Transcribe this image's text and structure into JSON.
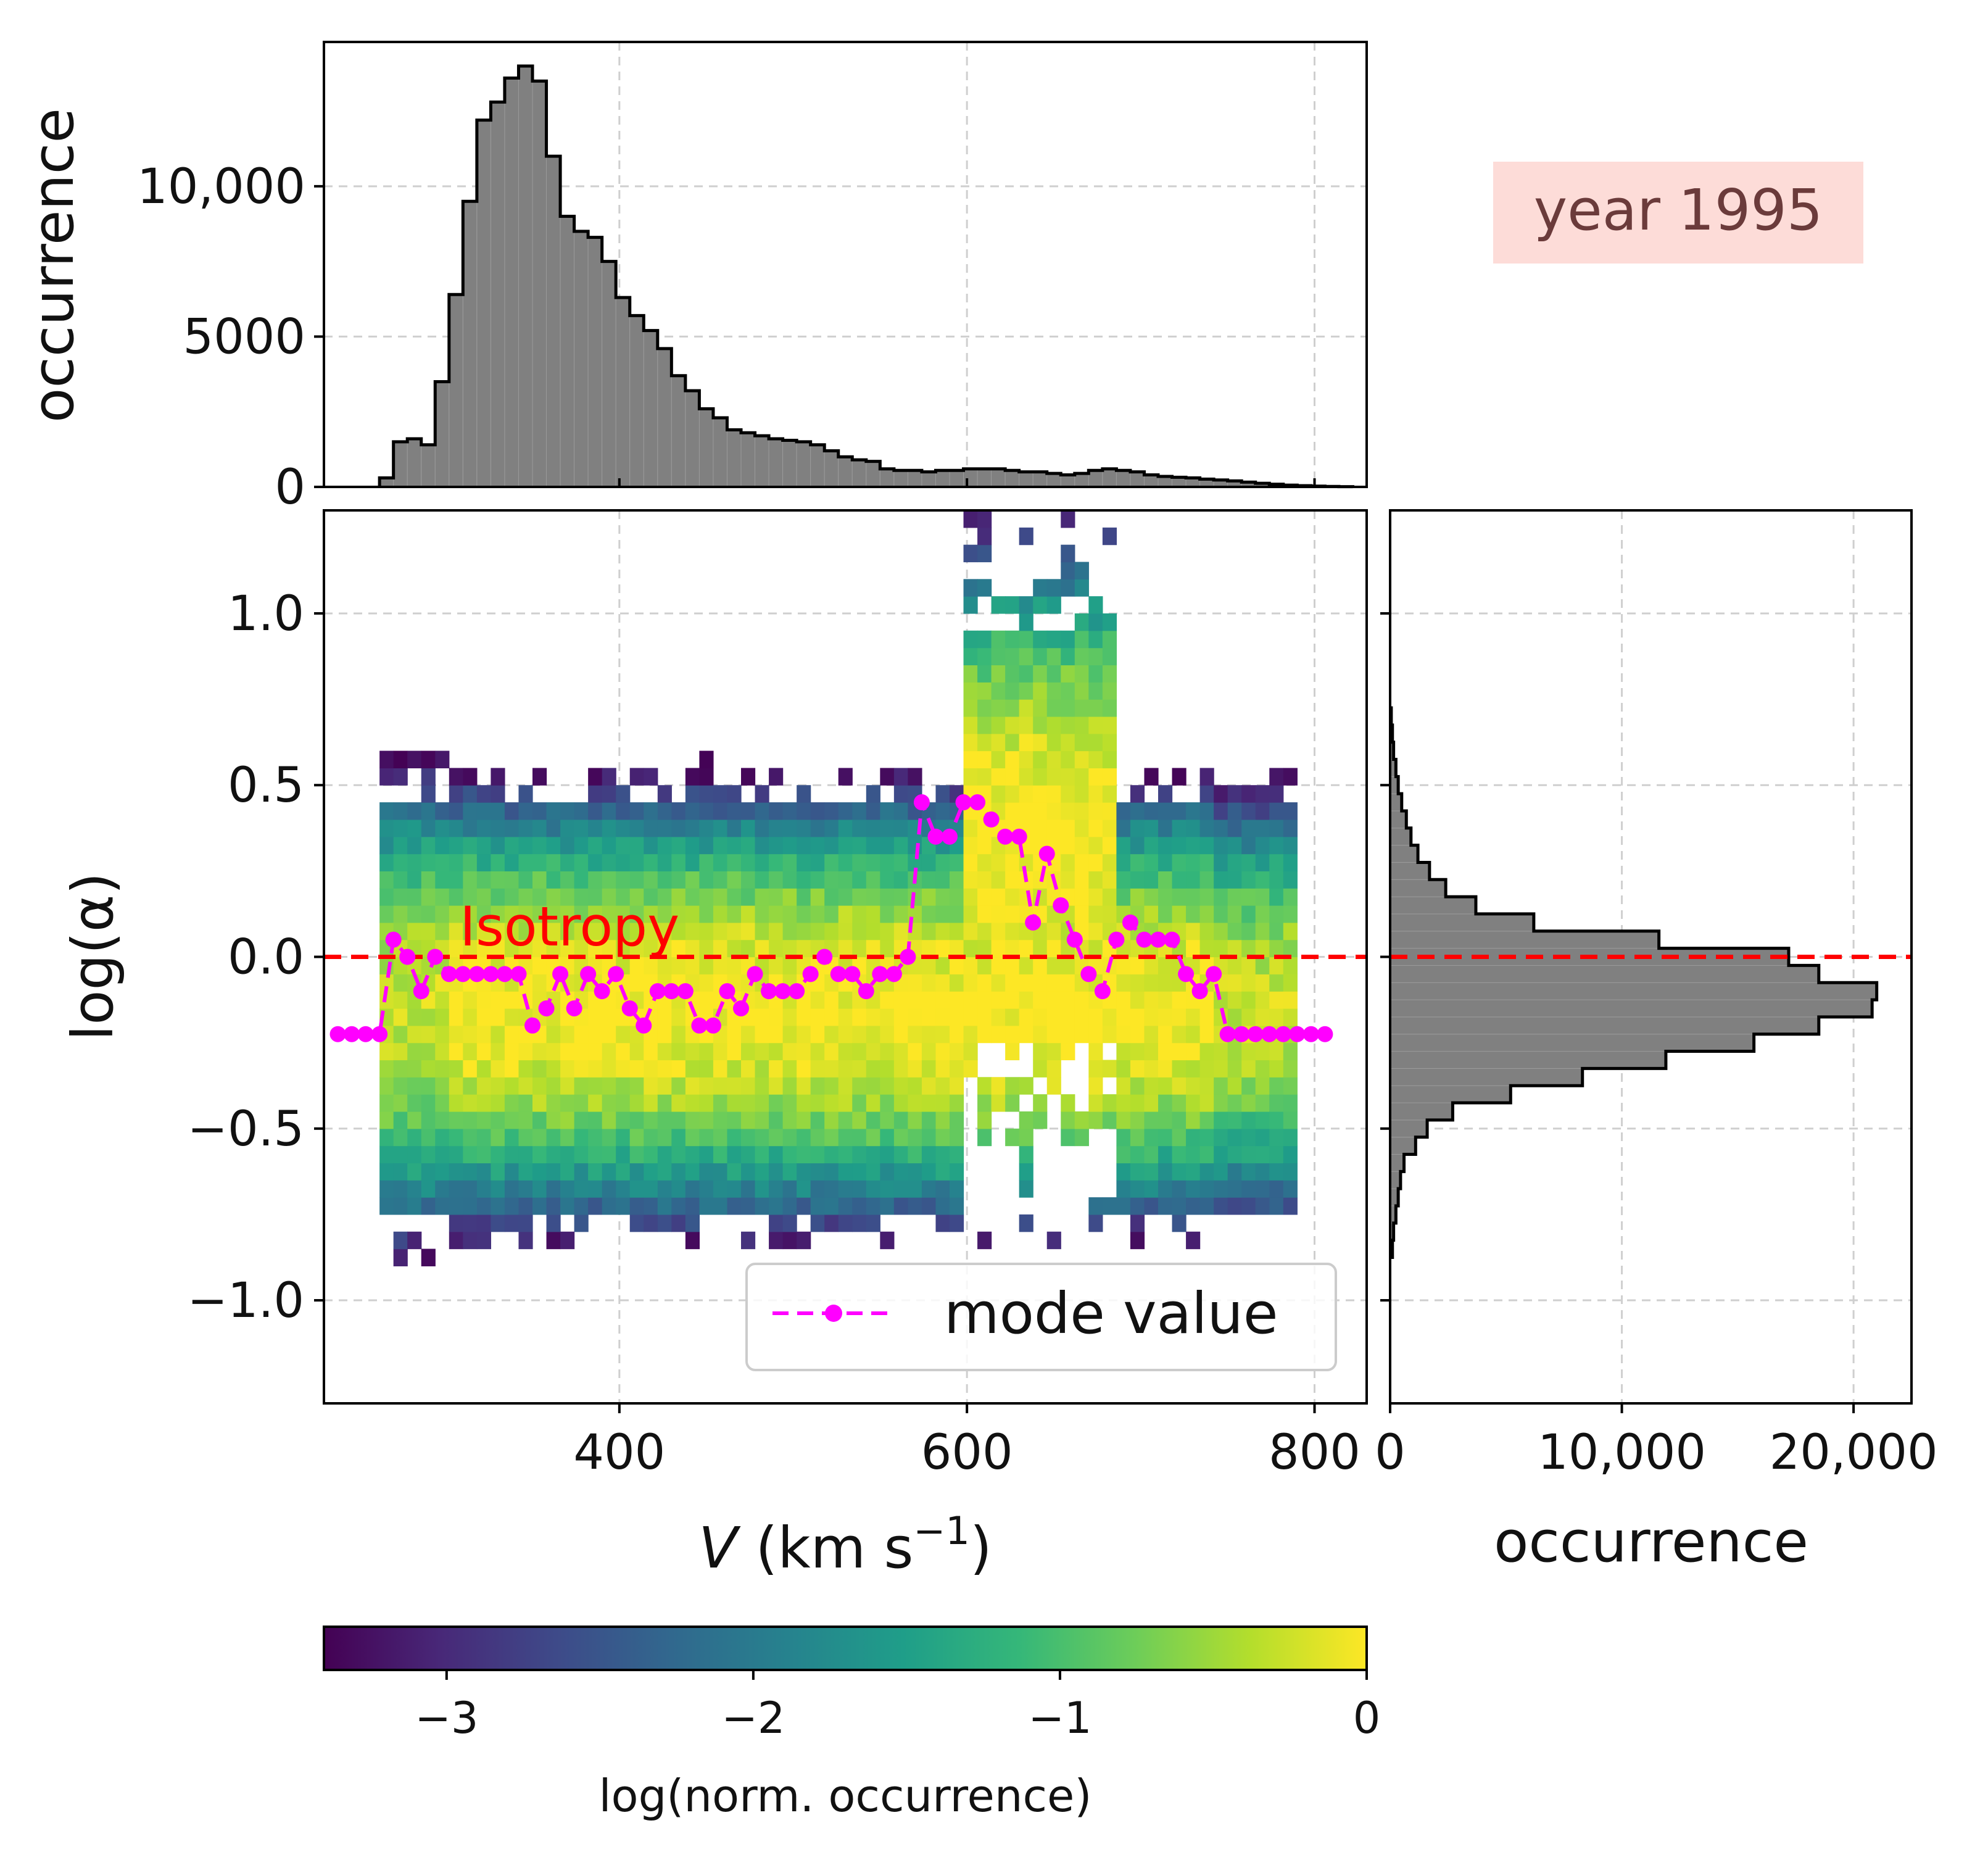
{
  "chart_data": [
    {
      "id": "top-histogram",
      "type": "bar",
      "title": "",
      "xlabel": "",
      "ylabel": "occurrence",
      "xlim": [
        230,
        830
      ],
      "ylim": [
        0,
        14800
      ],
      "bin_width": 8,
      "bin_edges_start": 262,
      "values": [
        300,
        1500,
        1600,
        1400,
        3500,
        6400,
        9500,
        12200,
        12800,
        13600,
        14000,
        13500,
        11000,
        9000,
        8500,
        8300,
        7500,
        6300,
        5700,
        5200,
        4600,
        3700,
        3200,
        2600,
        2300,
        1900,
        1800,
        1700,
        1600,
        1550,
        1500,
        1400,
        1200,
        1000,
        900,
        850,
        600,
        550,
        550,
        500,
        550,
        550,
        600,
        600,
        600,
        550,
        500,
        500,
        450,
        400,
        450,
        550,
        600,
        550,
        500,
        400,
        350,
        320,
        300,
        260,
        230,
        200,
        160,
        120,
        90,
        60,
        40,
        25,
        15,
        8
      ],
      "y_ticks": [
        {
          "value": 0,
          "label": "0"
        },
        {
          "value": 5000,
          "label": "5000"
        },
        {
          "value": 10000,
          "label": "10,000"
        }
      ],
      "x_grid": [
        400,
        600,
        800
      ]
    },
    {
      "id": "main-heatmap",
      "type": "heatmap",
      "title": "",
      "xlabel_italic": "V",
      "xlabel_unit": " (km s",
      "xlabel_sup": "−1",
      "xlabel_close": ")",
      "ylabel": "log(α)",
      "xlim": [
        230,
        830
      ],
      "ylim": [
        -1.3,
        1.3
      ],
      "x_bin_width": 8,
      "y_bin_width": 0.05,
      "x_bin_start": 262,
      "x_bin_end": 790,
      "density_model": "log-normalized occurrence; ridge near log(α) ≈ -0.15 at 330–560 km/s, shifting to ≈ +0.35 at 600–680 km/s",
      "x_ticks": [
        {
          "value": 400,
          "label": "400"
        },
        {
          "value": 600,
          "label": "600"
        },
        {
          "value": 800,
          "label": "800"
        }
      ],
      "y_ticks": [
        {
          "value": -1.0,
          "label": "−1.0"
        },
        {
          "value": -0.5,
          "label": "−0.5"
        },
        {
          "value": 0.0,
          "label": "0.0"
        },
        {
          "value": 0.5,
          "label": "0.5"
        },
        {
          "value": 1.0,
          "label": "1.0"
        }
      ],
      "isotropy_line": {
        "value": 0.0,
        "label": "Isotropy",
        "color": "#ff0000"
      },
      "mode_series": {
        "name": "mode value",
        "color": "#ff00ff",
        "x": [
          238,
          246,
          254,
          262,
          270,
          278,
          286,
          294,
          302,
          310,
          318,
          326,
          334,
          342,
          350,
          358,
          366,
          374,
          382,
          390,
          398,
          406,
          414,
          422,
          430,
          438,
          446,
          454,
          462,
          470,
          478,
          486,
          494,
          502,
          510,
          518,
          526,
          534,
          542,
          550,
          558,
          566,
          574,
          582,
          590,
          598,
          606,
          614,
          622,
          630,
          638,
          646,
          654,
          662,
          670,
          678,
          686,
          694,
          702,
          710,
          718,
          726,
          734,
          742,
          750,
          758,
          766,
          774,
          782,
          790,
          798,
          806
        ],
        "y": [
          -0.225,
          -0.225,
          -0.225,
          -0.225,
          0.05,
          0.0,
          -0.1,
          0.0,
          -0.05,
          -0.05,
          -0.05,
          -0.05,
          -0.05,
          -0.05,
          -0.2,
          -0.15,
          -0.05,
          -0.15,
          -0.05,
          -0.1,
          -0.05,
          -0.15,
          -0.2,
          -0.1,
          -0.1,
          -0.1,
          -0.2,
          -0.2,
          -0.1,
          -0.15,
          -0.05,
          -0.1,
          -0.1,
          -0.1,
          -0.05,
          0.0,
          -0.05,
          -0.05,
          -0.1,
          -0.05,
          -0.05,
          0.0,
          0.45,
          0.35,
          0.35,
          0.45,
          0.45,
          0.4,
          0.35,
          0.35,
          0.1,
          0.3,
          0.15,
          0.05,
          -0.05,
          -0.1,
          0.05,
          0.1,
          0.05,
          0.05,
          0.05,
          -0.05,
          -0.1,
          -0.05,
          -0.225,
          -0.225,
          -0.225,
          -0.225,
          -0.225,
          -0.225,
          -0.225,
          -0.225
        ]
      },
      "legend": {
        "label": "mode value",
        "position": "lower-right"
      }
    },
    {
      "id": "right-histogram",
      "type": "bar",
      "orientation": "horizontal",
      "xlabel": "occurrence",
      "ylabel": "",
      "xlim": [
        0,
        22500
      ],
      "ylim": [
        -1.3,
        1.3
      ],
      "bin_width": 0.05,
      "bin_centers": [
        -0.85,
        -0.8,
        -0.75,
        -0.7,
        -0.65,
        -0.6,
        -0.55,
        -0.5,
        -0.45,
        -0.4,
        -0.35,
        -0.3,
        -0.25,
        -0.2,
        -0.15,
        -0.1,
        -0.05,
        0.0,
        0.05,
        0.1,
        0.15,
        0.2,
        0.25,
        0.3,
        0.35,
        0.4,
        0.45,
        0.5,
        0.55,
        0.6,
        0.65,
        0.7
      ],
      "values": [
        100,
        150,
        250,
        350,
        450,
        600,
        1100,
        1600,
        2700,
        5200,
        8300,
        11900,
        15700,
        18500,
        20800,
        21000,
        18500,
        17200,
        11600,
        6200,
        3700,
        2400,
        1700,
        1200,
        900,
        700,
        500,
        350,
        250,
        150,
        100,
        50
      ],
      "x_ticks": [
        {
          "value": 0,
          "label": "0"
        },
        {
          "value": 10000,
          "label": "10,000"
        },
        {
          "value": 20000,
          "label": "20,000"
        }
      ],
      "isotropy_line": {
        "value": 0.0,
        "color": "#ff0000"
      }
    },
    {
      "id": "colorbar",
      "type": "colorbar",
      "label": "log(norm. occurrence)",
      "range": [
        -3.4,
        0
      ],
      "ticks": [
        {
          "value": -3,
          "label": "−3"
        },
        {
          "value": -2,
          "label": "−2"
        },
        {
          "value": -1,
          "label": "−1"
        },
        {
          "value": 0,
          "label": "0"
        }
      ],
      "colormap": "viridis"
    }
  ],
  "annotation": {
    "text": "year 1995",
    "bg_color": "#fddcd8",
    "text_color": "#6b3b3b"
  },
  "colors": {
    "histogram_fill": "#808080",
    "histogram_edge": "#000000",
    "isotropy": "#ff0000",
    "mode": "#ff00ff"
  }
}
